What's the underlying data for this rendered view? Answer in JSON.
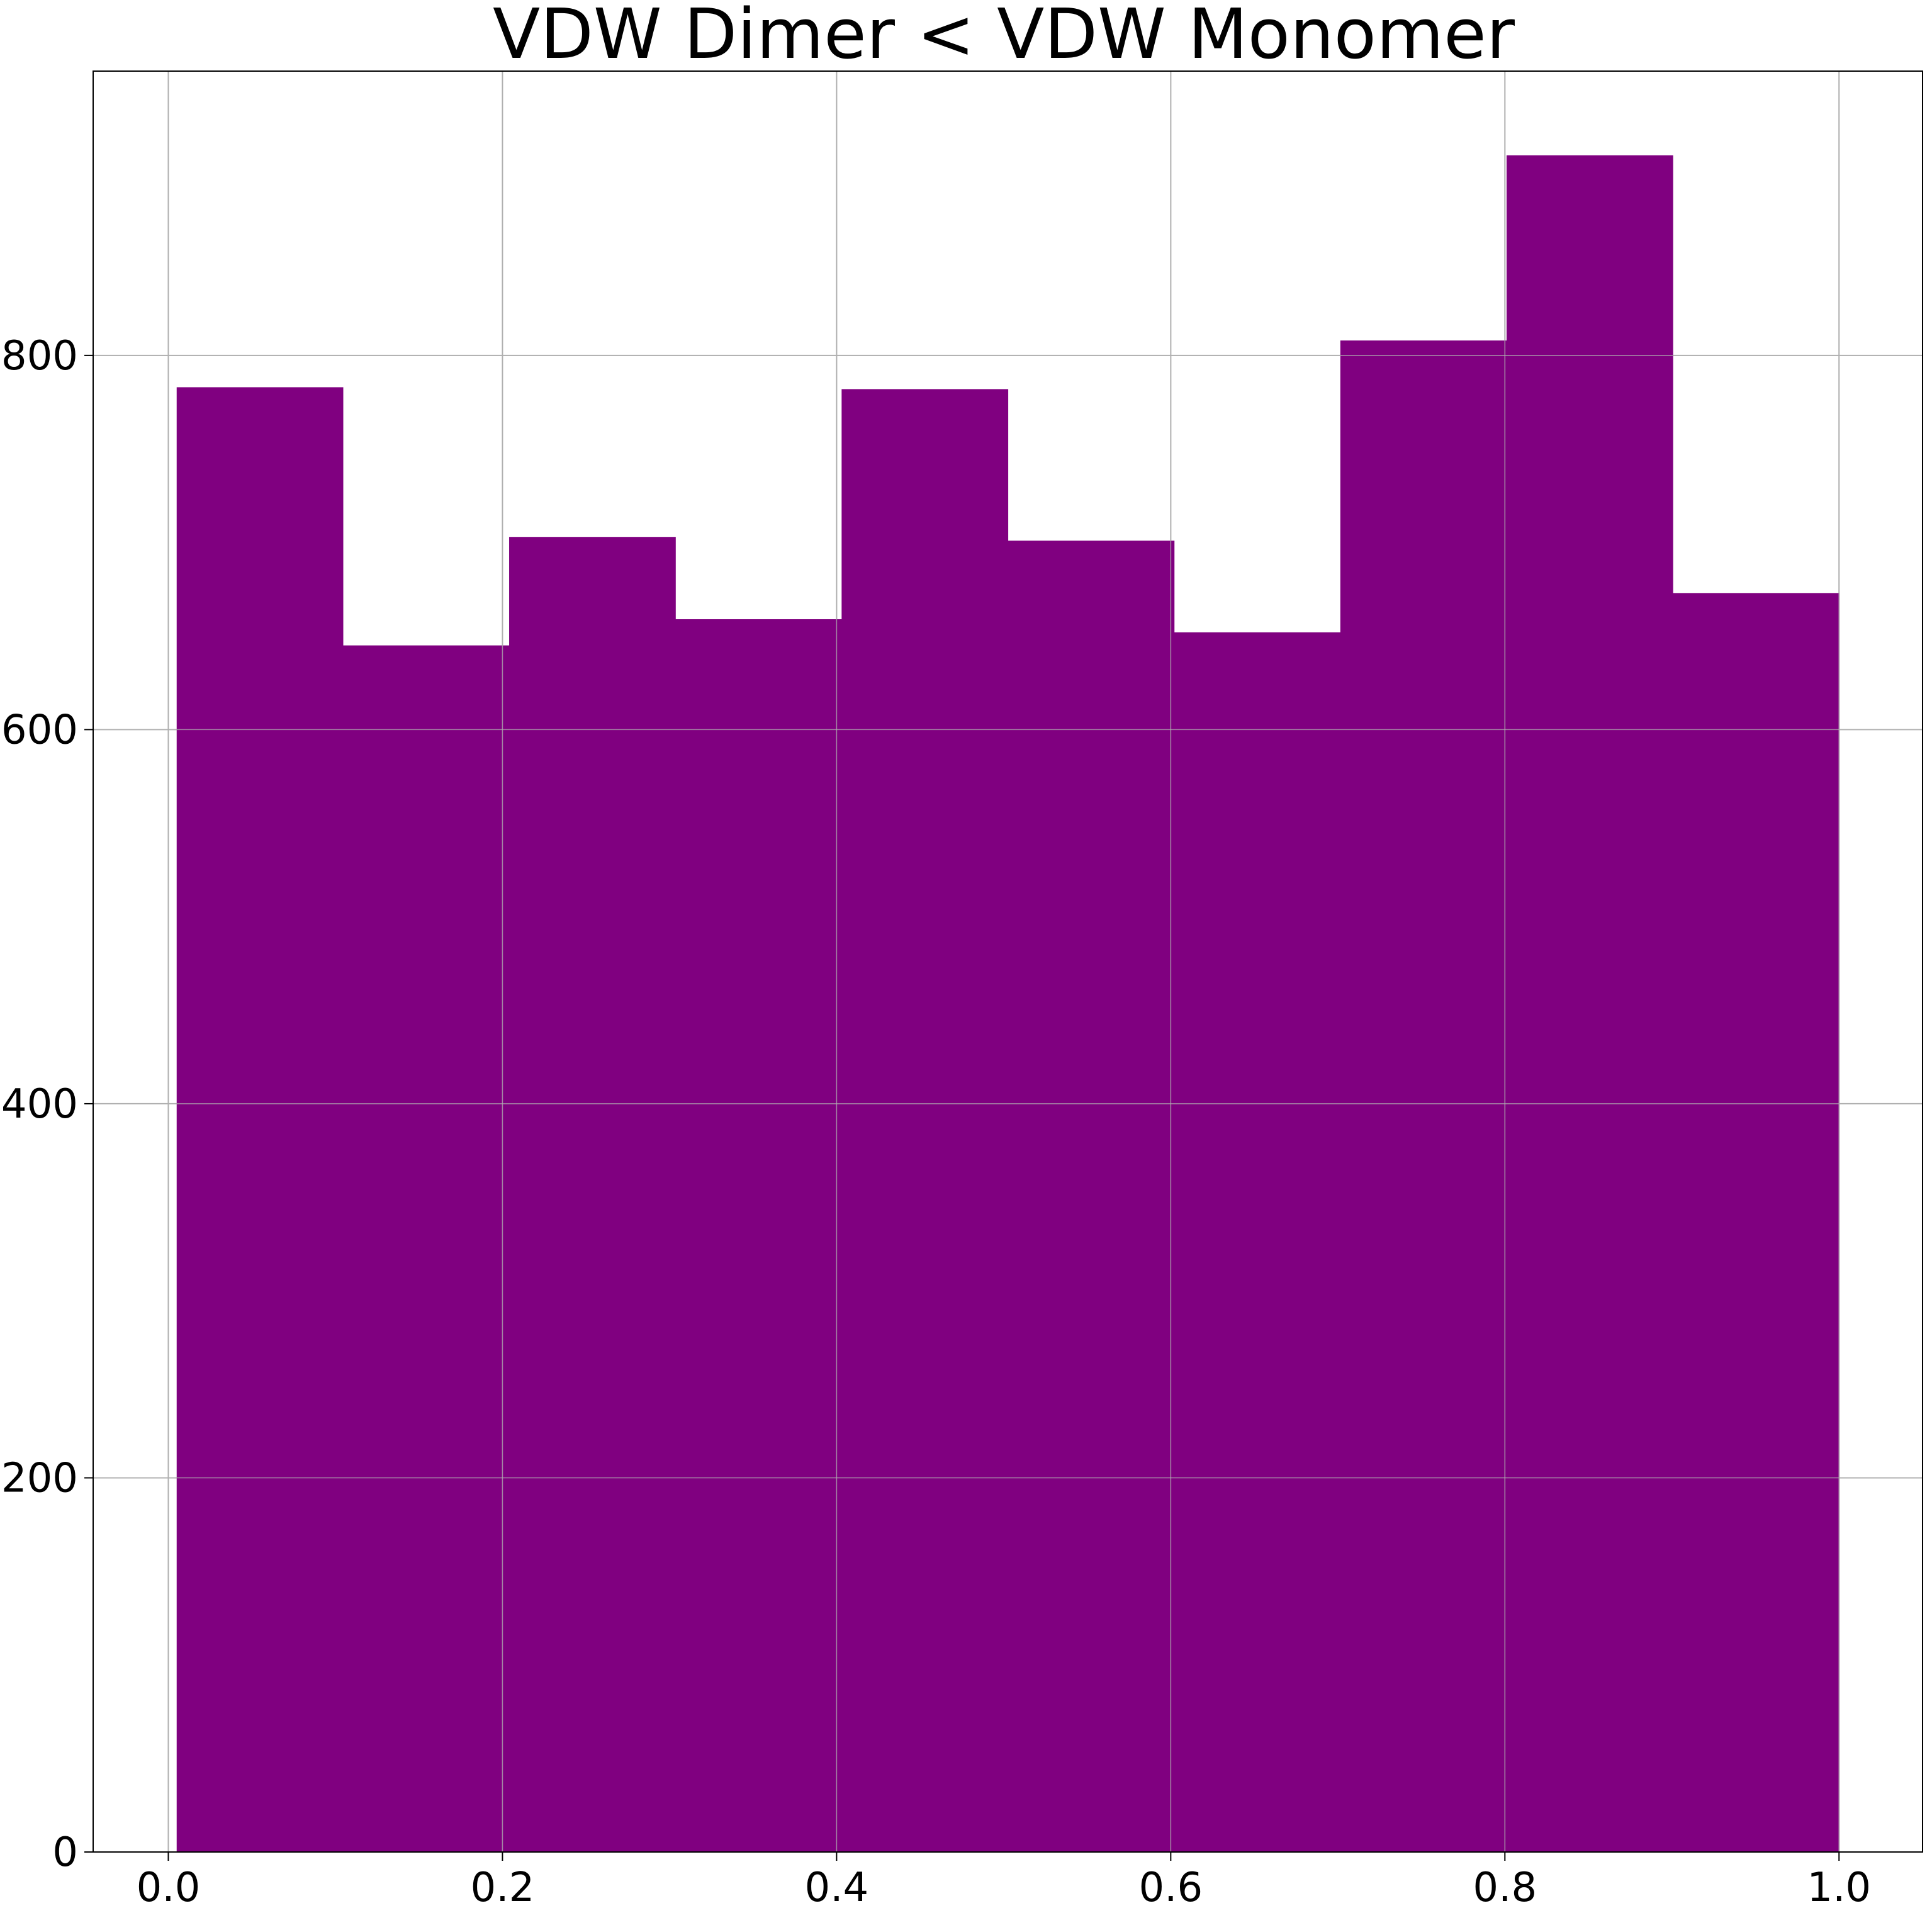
{
  "chart_data": {
    "type": "bar",
    "subtype": "histogram",
    "title": "VDW Dimer < VDW Monomer",
    "xlabel": "",
    "ylabel": "",
    "bins": [
      {
        "x0": 0.005,
        "x1": 0.1045,
        "count": 783
      },
      {
        "x0": 0.1045,
        "x1": 0.204,
        "count": 645
      },
      {
        "x0": 0.204,
        "x1": 0.3035,
        "count": 703
      },
      {
        "x0": 0.3035,
        "x1": 0.403,
        "count": 659
      },
      {
        "x0": 0.403,
        "x1": 0.5025,
        "count": 782
      },
      {
        "x0": 0.5025,
        "x1": 0.602,
        "count": 701
      },
      {
        "x0": 0.602,
        "x1": 0.7015,
        "count": 652
      },
      {
        "x0": 0.7015,
        "x1": 0.801,
        "count": 808
      },
      {
        "x0": 0.801,
        "x1": 0.9005,
        "count": 907
      },
      {
        "x0": 0.9005,
        "x1": 1.0,
        "count": 673
      }
    ],
    "xlim": [
      -0.045,
      1.05
    ],
    "ylim": [
      0,
      952
    ],
    "xticks": [
      0.0,
      0.2,
      0.4,
      0.6,
      0.8,
      1.0
    ],
    "xtick_labels": [
      "0.0",
      "0.2",
      "0.4",
      "0.6",
      "0.8",
      "1.0"
    ],
    "yticks": [
      0,
      200,
      400,
      600,
      800
    ],
    "ytick_labels": [
      "0",
      "200",
      "400",
      "600",
      "800"
    ],
    "grid": true,
    "legend": "none",
    "bar_color": "#800080",
    "grid_color": "#b0b0b0",
    "axis_color": "#000000"
  }
}
